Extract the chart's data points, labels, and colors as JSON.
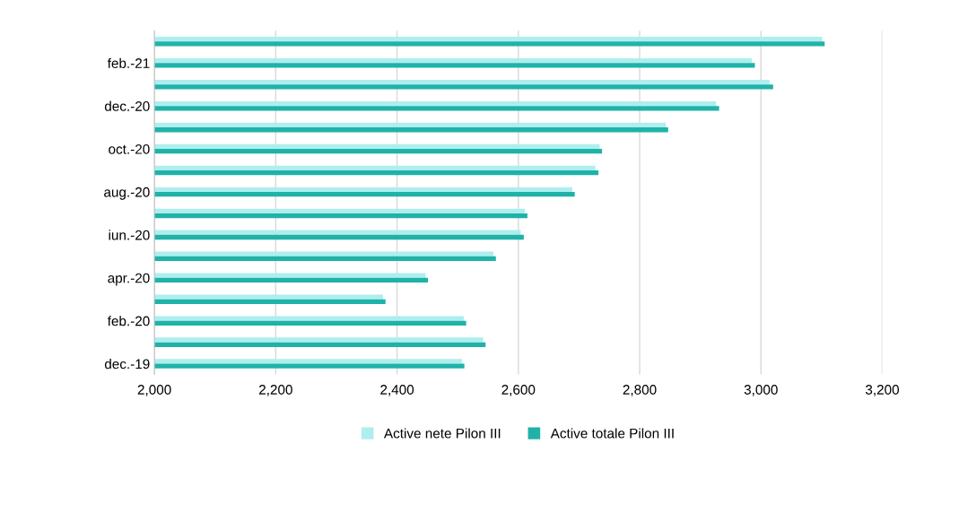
{
  "chart_data": {
    "type": "bar",
    "orientation": "horizontal",
    "categories": [
      null,
      "feb.-21",
      null,
      "dec.-20",
      null,
      "oct.-20",
      null,
      "aug.-20",
      null,
      "iun.-20",
      null,
      "apr.-20",
      null,
      "feb.-20",
      null,
      "dec.-19"
    ],
    "series": [
      {
        "name": "Active nete Pilon III",
        "color": "#aeeeee",
        "values": [
          3101,
          2985,
          3014,
          2926,
          2843,
          2734,
          2727,
          2689,
          2611,
          2604,
          2559,
          2447,
          2377,
          2510,
          2542,
          2507
        ]
      },
      {
        "name": "Active totale Pilon III",
        "color": "#20b2a8",
        "values": [
          3105,
          2990,
          3020,
          2931,
          2847,
          2738,
          2732,
          2693,
          2615,
          2609,
          2563,
          2451,
          2381,
          2514,
          2546,
          2511
        ]
      }
    ],
    "xlim": [
      2000,
      3200
    ],
    "xticks": [
      {
        "value": 2000,
        "label": "2,000"
      },
      {
        "value": 2200,
        "label": "2,200"
      },
      {
        "value": 2400,
        "label": "2,400"
      },
      {
        "value": 2600,
        "label": "2,600"
      },
      {
        "value": 2800,
        "label": "2,800"
      },
      {
        "value": 3000,
        "label": "3,000"
      },
      {
        "value": 3200,
        "label": "3,200"
      }
    ],
    "grid": "x",
    "legend": "bottom"
  }
}
